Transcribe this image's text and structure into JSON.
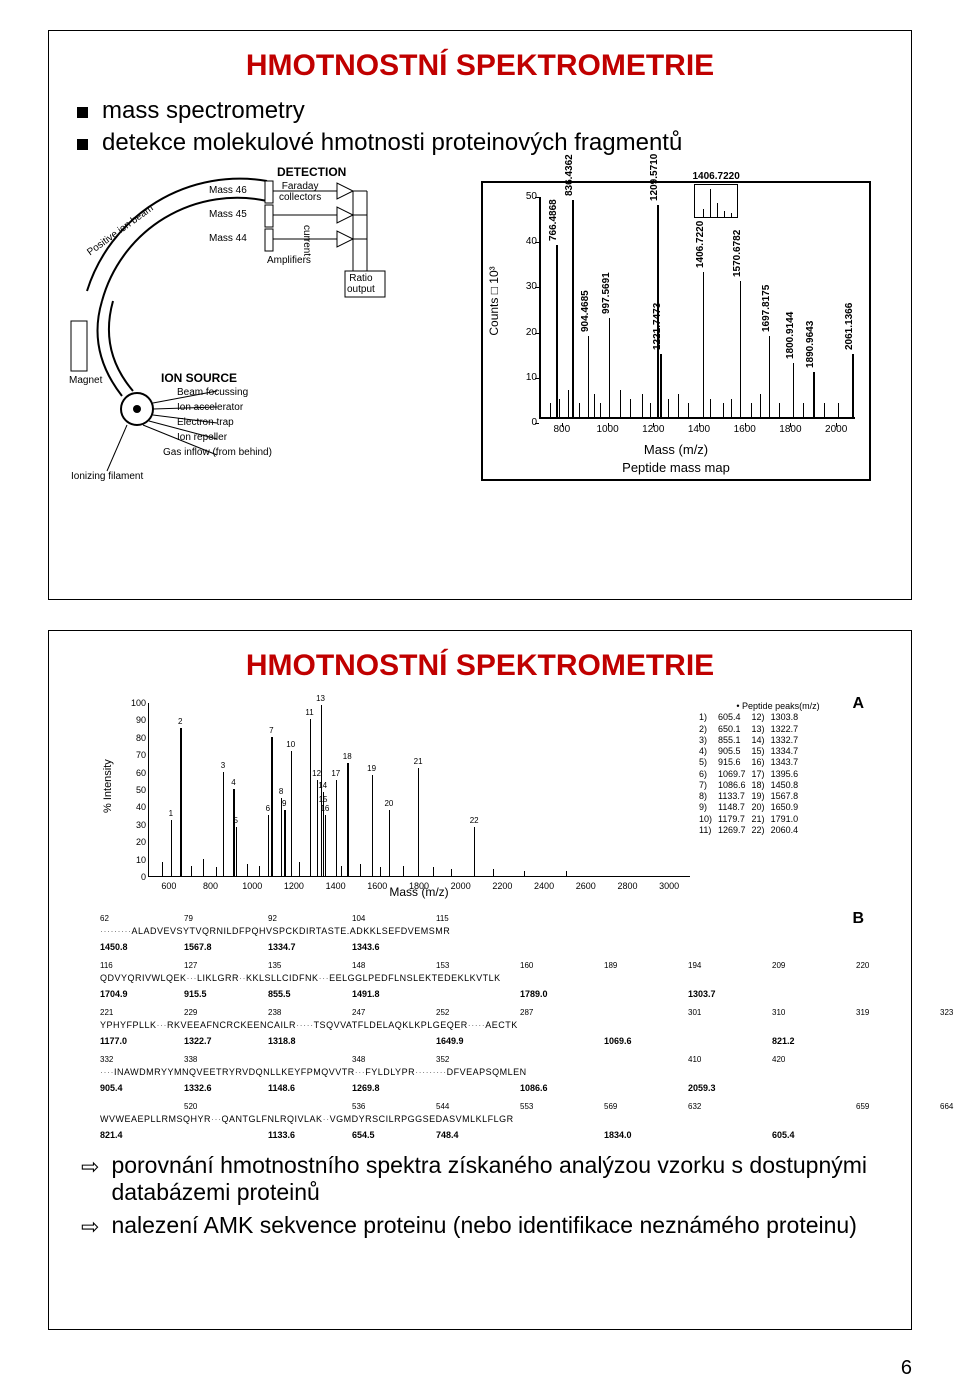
{
  "page_number": "6",
  "panel1": {
    "title": "HMOTNOSTNÍ SPEKTROMETRIE",
    "bullets": [
      "mass spectrometry",
      "detekce molekulové hmotnosti proteinových fragmentů"
    ],
    "schematic": {
      "labels": {
        "detection": "DETECTION",
        "faraday": "Faraday\ncollectors",
        "mass46": "Mass 46",
        "mass45": "Mass 45",
        "mass44": "Mass 44",
        "current": "current",
        "amplifiers": "Amplifiers",
        "ratio_output": "Ratio\noutput",
        "positive_ion_beam": "Positive ion beam",
        "magnet": "Magnet",
        "ion_source": "ION SOURCE",
        "beam_focussing": "Beam focussing",
        "ion_accelerator": "Ion accelerator",
        "electron_trap": "Electron trap",
        "ion_repeller": "Ion repeller",
        "gas_inflow": "Gas inflow (from behind)",
        "ionizing_filament": "Ionizing filament"
      }
    },
    "peptide_map": {
      "type": "bar-spectrum",
      "ylabel": "Counts □ 10³",
      "xlabel": "Mass (m/z)",
      "caption": "Peptide mass map",
      "ylim": [
        0,
        50
      ],
      "ytick_step": 10,
      "xlim": [
        700,
        2100
      ],
      "xticks": [
        800,
        1000,
        1200,
        1400,
        1600,
        1800,
        2000
      ],
      "inset_label": "1406.7220",
      "peaks": [
        {
          "mz": 766.4868,
          "h": 38
        },
        {
          "mz": 836.4362,
          "h": 48
        },
        {
          "mz": 904.4685,
          "h": 18
        },
        {
          "mz": 997.5691,
          "h": 22
        },
        {
          "mz": 1209.571,
          "h": 47
        },
        {
          "mz": 1221.7473,
          "h": 14
        },
        {
          "mz": 1406.722,
          "h": 32
        },
        {
          "mz": 1570.6782,
          "h": 30
        },
        {
          "mz": 1697.8175,
          "h": 18
        },
        {
          "mz": 1800.9144,
          "h": 12
        },
        {
          "mz": 1890.9643,
          "h": 10
        },
        {
          "mz": 2061.1366,
          "h": 14
        }
      ],
      "noise": [
        {
          "mz": 740,
          "h": 3
        },
        {
          "mz": 780,
          "h": 4
        },
        {
          "mz": 820,
          "h": 6
        },
        {
          "mz": 865,
          "h": 3
        },
        {
          "mz": 930,
          "h": 5
        },
        {
          "mz": 960,
          "h": 3
        },
        {
          "mz": 1045,
          "h": 6
        },
        {
          "mz": 1090,
          "h": 4
        },
        {
          "mz": 1140,
          "h": 5
        },
        {
          "mz": 1175,
          "h": 3
        },
        {
          "mz": 1255,
          "h": 4
        },
        {
          "mz": 1300,
          "h": 5
        },
        {
          "mz": 1345,
          "h": 3
        },
        {
          "mz": 1440,
          "h": 4
        },
        {
          "mz": 1495,
          "h": 3
        },
        {
          "mz": 1530,
          "h": 4
        },
        {
          "mz": 1620,
          "h": 3
        },
        {
          "mz": 1660,
          "h": 5
        },
        {
          "mz": 1740,
          "h": 3
        },
        {
          "mz": 1845,
          "h": 3
        },
        {
          "mz": 1940,
          "h": 3
        },
        {
          "mz": 2000,
          "h": 3
        }
      ],
      "colors": {
        "bar": "#000000",
        "axis": "#000000",
        "bg": "#ffffff"
      }
    }
  },
  "panel2": {
    "title": "HMOTNOSTNÍ SPEKTROMETRIE",
    "figA": {
      "type": "bar-spectrum",
      "panel_letter": "A",
      "ylabel": "% Intensity",
      "xlabel": "Mass (m/z)",
      "ylim": [
        0,
        100
      ],
      "ytick_step": 10,
      "xlim": [
        500,
        3100
      ],
      "xticks": [
        600,
        800,
        1000,
        1200,
        1400,
        1600,
        1800,
        2000,
        2200,
        2400,
        2600,
        2800,
        3000
      ],
      "legend_title": "Peptide peaks(m/z)",
      "legend_rows": [
        [
          "1)",
          "605.4",
          "12)",
          "1303.8"
        ],
        [
          "2)",
          "650.1",
          "13)",
          "1322.7"
        ],
        [
          "3)",
          "855.1",
          "14)",
          "1332.7"
        ],
        [
          "4)",
          "905.5",
          "15)",
          "1334.7"
        ],
        [
          "5)",
          "915.6",
          "16)",
          "1343.7"
        ],
        [
          "6)",
          "1069.7",
          "17)",
          "1395.6"
        ],
        [
          "7)",
          "1086.6",
          "18)",
          "1450.8"
        ],
        [
          "8)",
          "1133.7",
          "19)",
          "1567.8"
        ],
        [
          "9)",
          "1148.7",
          "20)",
          "1650.9"
        ],
        [
          "10)",
          "1179.7",
          "21)",
          "1791.0"
        ],
        [
          "11)",
          "1269.7",
          "22)",
          "2060.4"
        ]
      ],
      "peaks": [
        {
          "n": 1,
          "mz": 605,
          "h": 32
        },
        {
          "n": 2,
          "mz": 650,
          "h": 85
        },
        {
          "n": 3,
          "mz": 855,
          "h": 60
        },
        {
          "n": 4,
          "mz": 905,
          "h": 50
        },
        {
          "n": 5,
          "mz": 916,
          "h": 28
        },
        {
          "n": 6,
          "mz": 1070,
          "h": 35
        },
        {
          "n": 7,
          "mz": 1087,
          "h": 80
        },
        {
          "n": 8,
          "mz": 1134,
          "h": 45
        },
        {
          "n": 9,
          "mz": 1149,
          "h": 38
        },
        {
          "n": 10,
          "mz": 1180,
          "h": 72
        },
        {
          "n": 11,
          "mz": 1270,
          "h": 90
        },
        {
          "n": 12,
          "mz": 1304,
          "h": 55
        },
        {
          "n": 13,
          "mz": 1323,
          "h": 98
        },
        {
          "n": 14,
          "mz": 1333,
          "h": 48
        },
        {
          "n": 15,
          "mz": 1335,
          "h": 40
        },
        {
          "n": 16,
          "mz": 1344,
          "h": 35
        },
        {
          "n": 17,
          "mz": 1396,
          "h": 55
        },
        {
          "n": 18,
          "mz": 1451,
          "h": 65
        },
        {
          "n": 19,
          "mz": 1568,
          "h": 58
        },
        {
          "n": 20,
          "mz": 1651,
          "h": 38
        },
        {
          "n": 21,
          "mz": 1791,
          "h": 62
        },
        {
          "n": 22,
          "mz": 2060,
          "h": 28
        }
      ],
      "noise": [
        {
          "mz": 560,
          "h": 8
        },
        {
          "mz": 700,
          "h": 6
        },
        {
          "mz": 760,
          "h": 10
        },
        {
          "mz": 820,
          "h": 5
        },
        {
          "mz": 970,
          "h": 7
        },
        {
          "mz": 1030,
          "h": 6
        },
        {
          "mz": 1220,
          "h": 8
        },
        {
          "mz": 1420,
          "h": 6
        },
        {
          "mz": 1510,
          "h": 7
        },
        {
          "mz": 1610,
          "h": 5
        },
        {
          "mz": 1720,
          "h": 6
        },
        {
          "mz": 1860,
          "h": 5
        },
        {
          "mz": 1950,
          "h": 4
        },
        {
          "mz": 2150,
          "h": 4
        },
        {
          "mz": 2300,
          "h": 3
        },
        {
          "mz": 2500,
          "h": 3
        }
      ]
    },
    "figB": {
      "panel_letter": "B",
      "blocks": [
        {
          "idx": [
            "62",
            "79",
            "92",
            "104",
            "115"
          ],
          "seq": "·········ALADVEVSYTVQRNILDFPQHVSPCKDIRTASTE.ADKKLSEFDVEMSMR",
          "masses": [
            "1450.8",
            "1567.8",
            "1334.7",
            "1343.6",
            ""
          ]
        },
        {
          "idx": [
            "116",
            "127",
            "135",
            "148",
            "153",
            "160",
            "189",
            "194",
            "209",
            "220"
          ],
          "seq": "QDVYQRIVWLQEK···LIKLGRR··KKLSLLCIDFNK···EELGGLPEDFLNSLEKTEDEKLKVTLK",
          "masses": [
            "1704.9",
            "915.5",
            "855.5",
            "1491.8",
            "",
            "1789.0",
            "",
            "1303.7",
            ""
          ]
        },
        {
          "idx": [
            "221",
            "229",
            "238",
            "247",
            "252",
            "287",
            "",
            "301",
            "310",
            "319",
            "323"
          ],
          "seq": "YPHYFPLLK···RKVEEAFNCRCKEENCAILR·····TSQVVATFLDELAQKLKPLGEQER·····AECTK",
          "masses": [
            "1177.0",
            "1322.7",
            "1318.8",
            "",
            "1649.9",
            "",
            "1069.6",
            "",
            "821.2"
          ]
        },
        {
          "idx": [
            "332",
            "338",
            "",
            "348",
            "352",
            "",
            "",
            "410",
            "420",
            ""
          ],
          "seq": "····INAWDMRYYMNQVEETRYRVDQNLLKEYFPMQVVTR···FYLDLYPR·········DFVEAPSQMLEN",
          "masses": [
            "905.4",
            "1332.6",
            "1148.6",
            "1269.8",
            "",
            "1086.6",
            "",
            "2059.3"
          ]
        },
        {
          "idx": [
            "",
            "520",
            "",
            "536",
            "544",
            "553",
            "569",
            "632",
            "",
            "659",
            "664"
          ],
          "seq": "WVWEAEPLLRMSQHYR···QANTGLFNLRQIVLAK··VGMDYRSCILRPGGSEDASVMLKLFLGR",
          "masses": [
            "821.4",
            "",
            "1133.6",
            "654.5",
            "748.4",
            "",
            "1834.0",
            "",
            "605.4"
          ]
        }
      ]
    },
    "arrowBullets": [
      "porovnání hmotnostního spektra získaného analýzou vzorku s dostupnými databázemi proteinů",
      "nalezení AMK sekvence proteinu (nebo identifikace neznámého proteinu)"
    ]
  }
}
